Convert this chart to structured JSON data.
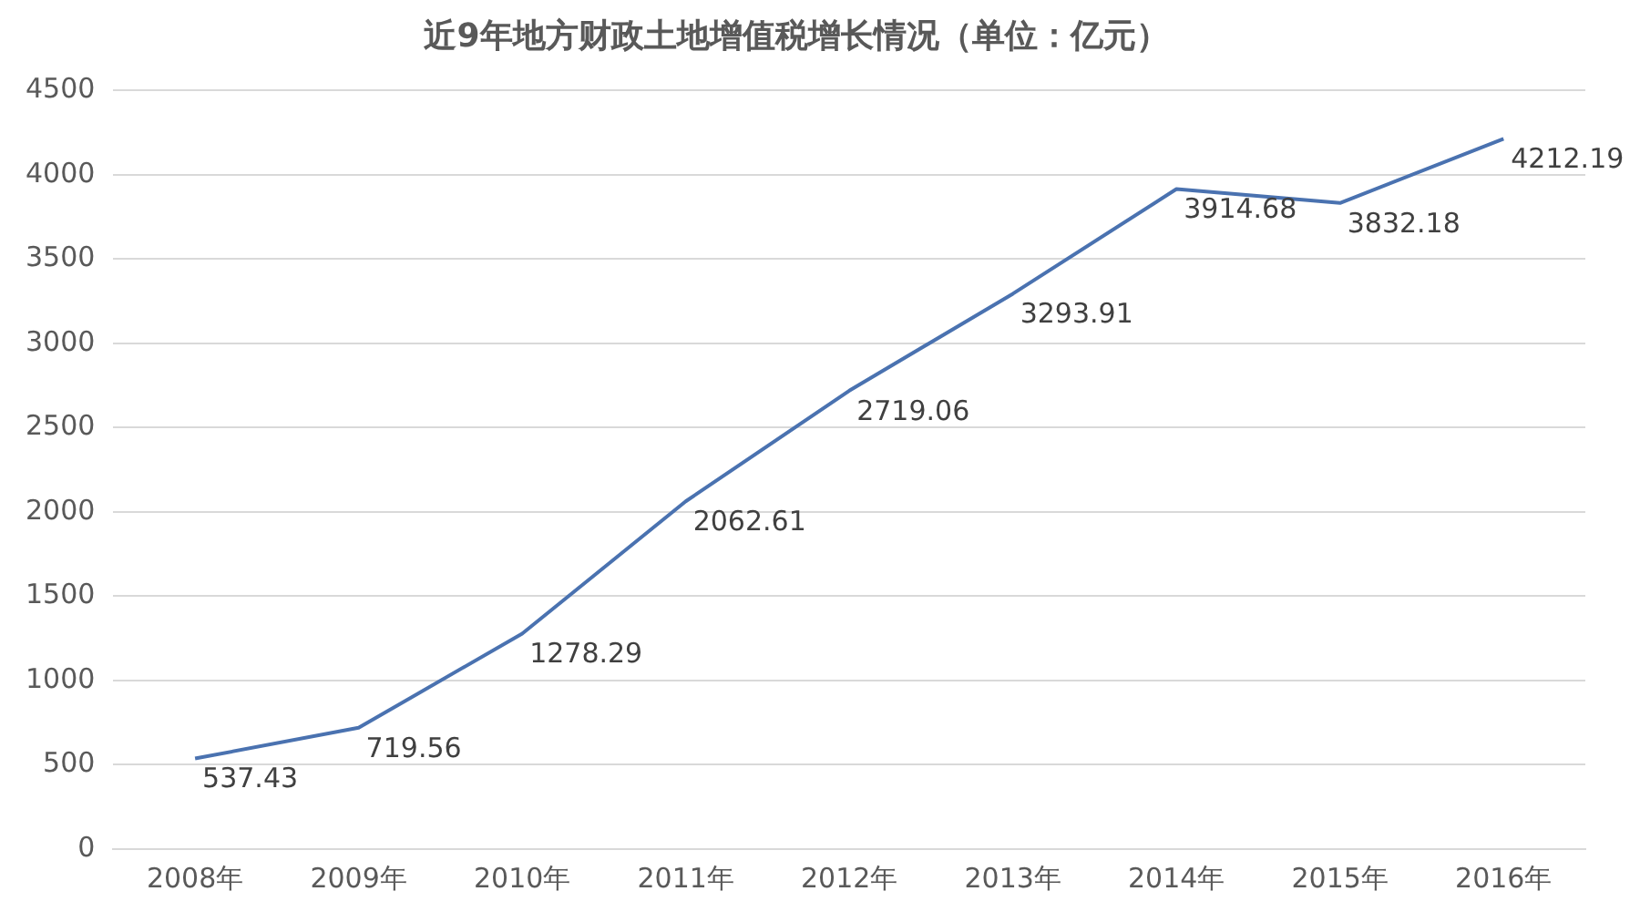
{
  "chart_data": {
    "type": "line",
    "title": "近9年地方财政土地增值税增长情况（单位：亿元）",
    "categories": [
      "2008年",
      "2009年",
      "2010年",
      "2011年",
      "2012年",
      "2013年",
      "2014年",
      "2015年",
      "2016年"
    ],
    "series": [
      {
        "color": "#4a72b0",
        "values": [
          537.43,
          719.56,
          1278.29,
          2062.61,
          2719.06,
          3293.91,
          3914.68,
          3832.18,
          4212.19
        ]
      }
    ],
    "ylim": [
      0,
      4500
    ],
    "yticks": [
      0,
      500,
      1000,
      1500,
      2000,
      2500,
      3000,
      3500,
      4000,
      4500
    ],
    "grid": "y",
    "legend": false,
    "marker": "none",
    "line_style": "solid",
    "data_labels": true
  }
}
